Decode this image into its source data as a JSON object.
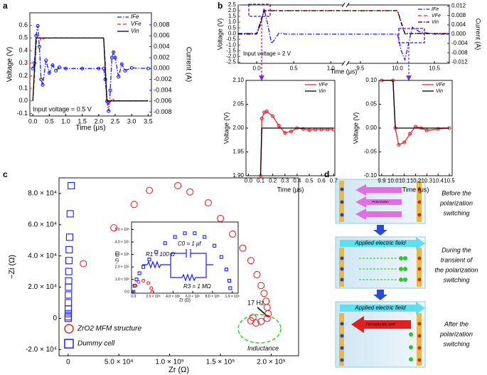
{
  "panel_labels": [
    "a",
    "b",
    "c",
    "d"
  ],
  "chart_data": [
    {
      "type": "line",
      "xlabel": "Time (μs)",
      "ylabel": "Voltage (V)",
      "y2label": "Current (A)",
      "annotations": [
        "Input voltage = 0.5 V"
      ],
      "legend": "upper right",
      "ycolor": "#e8262b",
      "y2color": "#1a1aff",
      "xlim": [
        -0.09,
        3.6
      ],
      "xticks": [
        {
          "value": 0,
          "label": "0.0"
        },
        0.5,
        {
          "value": 1,
          "label": "1.0"
        },
        1.5,
        {
          "value": 2,
          "label": "2.0"
        },
        2.5,
        {
          "value": 3,
          "label": "3.0"
        },
        3.5
      ],
      "ylim": [
        -0.12,
        0.7
      ],
      "yticks": [
        -0.1,
        {
          "value": 0,
          "label": "0.0"
        },
        0.1,
        0.2,
        0.3,
        0.4,
        0.5,
        0.6
      ],
      "y2lim": [
        -0.0087,
        0.0102
      ],
      "y2ticks": [
        -0.008,
        -0.006,
        -0.004,
        -0.002,
        {
          "value": 0,
          "label": "0.000"
        },
        0.002,
        0.004,
        0.006,
        0.008
      ],
      "x": [
        0,
        0.05,
        0.1,
        0.15,
        0.2,
        0.25,
        0.3,
        0.4,
        0.5,
        0.6,
        0.7,
        0.8,
        1.0,
        1.5,
        2.0,
        2.15,
        2.2,
        2.25,
        2.3,
        2.35,
        2.4,
        2.45,
        2.5,
        2.6,
        2.7,
        2.8,
        3.0,
        3.5
      ],
      "series": [
        {
          "name": "IFe",
          "color": "#1a1aff",
          "axis": "y2",
          "dash": "dashdot",
          "marker": "circle",
          "values": [
            0,
            0.001,
            0.006,
            0.0078,
            0.004,
            -0.002,
            -0.003,
            0.0015,
            -0.0008,
            0.0006,
            -0.0004,
            0.0002,
            0,
            0,
            0,
            0,
            -0.002,
            -0.006,
            -0.0078,
            -0.004,
            0.002,
            0.003,
            0.002,
            -0.0015,
            0.0008,
            -0.0004,
            0.0001,
            0
          ]
        },
        {
          "name": "VFe",
          "color": "#e8262b",
          "dash": "dash",
          "values": [
            0,
            0.2,
            0.45,
            0.52,
            0.51,
            0.48,
            0.49,
            0.505,
            0.498,
            0.5,
            0.5,
            0.5,
            0.5,
            0.5,
            0.5,
            0.5,
            0.3,
            0.02,
            -0.03,
            -0.01,
            0.02,
            0.01,
            -0.005,
            0.003,
            0,
            0,
            0,
            0
          ]
        },
        {
          "name": "Vin",
          "color": "#000000",
          "dash": "solid",
          "values": [
            0,
            0.25,
            0.5,
            0.5,
            0.5,
            0.5,
            0.5,
            0.5,
            0.5,
            0.5,
            0.5,
            0.5,
            0.5,
            0.5,
            0.5,
            0.5,
            0.25,
            0,
            0,
            0,
            0,
            0,
            0,
            0,
            0,
            0,
            0,
            0
          ]
        }
      ]
    },
    {
      "type": "line",
      "xlabel": "Time (μs)",
      "ylabel": "Voltage (V)",
      "y2label": "Current (A)",
      "annotations": [
        "Input voltage = 2 V"
      ],
      "legend": "upper right",
      "ycolor": "#e8262b",
      "y2color": "#1a1aff",
      "xlim": [
        -0.25,
        10.7
      ],
      "xbreak": [
        1.2,
        9.3
      ],
      "xticks": [
        {
          "value": 0,
          "label": "0.0"
        },
        0.5,
        {
          "value": 1,
          "label": "1.0"
        },
        9.5,
        {
          "value": 10,
          "label": "10.0"
        },
        10.5
      ],
      "ylim": [
        -2.6,
        2.5
      ],
      "yticks": [
        -2.5,
        {
          "value": -2,
          "label": "-2.0"
        },
        -1.5,
        {
          "value": -1,
          "label": "-1.0"
        },
        -0.5,
        {
          "value": 0,
          "label": "0.0"
        },
        0.5,
        {
          "value": 1,
          "label": "1.0"
        },
        1.5,
        {
          "value": 2,
          "label": "2.0"
        },
        2.5
      ],
      "y2lim": [
        -0.0125,
        0.0125
      ],
      "y2ticks": [
        -0.012,
        -0.008,
        -0.004,
        {
          "value": 0,
          "label": "0.000"
        },
        0.004,
        0.008,
        0.012
      ],
      "x": [
        -0.25,
        0,
        0.05,
        0.1,
        0.15,
        0.2,
        0.25,
        0.3,
        0.4,
        0.5,
        0.7,
        1.0,
        1.2,
        9.3,
        9.9,
        10.0,
        10.05,
        10.1,
        10.15,
        10.2,
        10.3,
        10.5,
        10.7
      ],
      "series": [
        {
          "name": "IFe",
          "color": "#1a1aff",
          "axis": "y2",
          "dash": "dashdot",
          "values": [
            0,
            0,
            0.004,
            0.011,
            0.004,
            -0.004,
            -0.002,
            0.0005,
            0,
            0,
            0,
            0,
            0,
            0,
            0,
            0,
            -0.007,
            -0.011,
            -0.004,
            0.003,
            0.001,
            0,
            0
          ]
        },
        {
          "name": "VFe",
          "color": "#e8262b",
          "dash": "dash",
          "values": [
            0,
            0,
            0.9,
            1.9,
            2.03,
            2.02,
            2.0,
            1.99,
            2.0,
            2.0,
            2.0,
            2.0,
            2.0,
            2.0,
            2.0,
            2.0,
            0.9,
            -0.03,
            -0.02,
            0,
            0,
            0,
            0
          ]
        },
        {
          "name": "Vin",
          "color": "#000000",
          "dash": "dashdot",
          "values": [
            0,
            0,
            1,
            2,
            2,
            2,
            2,
            2,
            2,
            2,
            2,
            2,
            2,
            2,
            2,
            2,
            1,
            0,
            0,
            0,
            0,
            0,
            0
          ]
        }
      ]
    },
    {
      "type": "line",
      "xlabel": "Time (μs)",
      "ylabel": "Voltage (V)",
      "legend": "upper right",
      "xlim": [
        -0.02,
        0.71
      ],
      "xticks": [
        {
          "value": 0,
          "label": "0.0"
        },
        0.1,
        0.2,
        0.3,
        0.4,
        0.5,
        0.6,
        0.7
      ],
      "ylim": [
        1.9,
        2.1
      ],
      "yticks": [
        {
          "value": 1.9,
          "label": "1.90"
        },
        1.95,
        {
          "value": 2,
          "label": "2.00"
        },
        2.05,
        {
          "value": 2.1,
          "label": "2.10"
        }
      ],
      "x": [
        0.1,
        0.11,
        0.13,
        0.15,
        0.2,
        0.25,
        0.3,
        0.35,
        0.4,
        0.45,
        0.5,
        0.55,
        0.6,
        0.65,
        0.7
      ],
      "series": [
        {
          "name": "VFe",
          "color": "#e8262b",
          "dash": "solid",
          "marker": "circle",
          "values": [
            1.9,
            2.02,
            2.033,
            2.035,
            2.025,
            2.005,
            1.99,
            1.993,
            2.0,
            1.998,
            1.996,
            1.997,
            1.997,
            1.997,
            1.997
          ]
        },
        {
          "name": "Vin",
          "color": "#000000",
          "dash": "solid",
          "values": [
            1.9,
            2.0,
            2.0,
            2.0,
            2.0,
            2.0,
            2.0,
            2.0,
            2.0,
            2.0,
            2.0,
            2.0,
            2.0,
            2.0,
            2.0
          ]
        }
      ]
    },
    {
      "type": "line",
      "xlabel": "Time (μs)",
      "ylabel": "Voltage (V)",
      "legend": "upper right",
      "xlim": [
        9.875,
        10.525
      ],
      "xticks": [
        9.9,
        {
          "value": 10,
          "label": "10.0"
        },
        10.1,
        10.2,
        10.3,
        10.4,
        10.5
      ],
      "ylim": [
        -0.1,
        0.1
      ],
      "yticks": [
        {
          "value": -0.1,
          "label": "-0.10"
        },
        -0.05,
        {
          "value": 0,
          "label": "0.00"
        },
        0.05,
        {
          "value": 0.1,
          "label": "0.10"
        }
      ],
      "x": [
        9.9,
        10.0,
        10.02,
        10.05,
        10.1,
        10.15,
        10.2,
        10.25,
        10.3,
        10.4,
        10.5
      ],
      "series": [
        {
          "name": "VFe",
          "color": "#e8262b",
          "dash": "solid",
          "marker": "circle",
          "values": [
            0.1,
            0.1,
            0.0,
            -0.035,
            -0.03,
            -0.012,
            0.003,
            0.0,
            -0.005,
            -0.002,
            0
          ]
        },
        {
          "name": "Vin",
          "color": "#000000",
          "dash": "solid",
          "values": [
            0.1,
            0.1,
            0,
            0,
            0,
            0,
            0,
            0,
            0,
            0,
            0
          ]
        }
      ]
    },
    {
      "type": "scatter",
      "xlabel": "Zr (Ω)",
      "ylabel": "−Zi (Ω)",
      "legend": "lower left",
      "annotations": [
        "17 Hz",
        "Inductance"
      ],
      "xlim": [
        -9000,
        227000
      ],
      "xticks": [
        0,
        {
          "value": 50000,
          "label": "5.0 × 10⁴"
        },
        {
          "value": 100000,
          "label": "1.0 × 10⁵"
        },
        {
          "value": 150000,
          "label": "1.5 × 10⁵"
        },
        {
          "value": 200000,
          "label": "2.0 × 10⁵"
        }
      ],
      "ylim": [
        -24000,
        90000
      ],
      "yticks": [
        {
          "value": -20000,
          "label": "-2.0 × 10⁴"
        },
        0,
        {
          "value": 20000,
          "label": "2.0 × 10⁴"
        },
        {
          "value": 40000,
          "label": "4.0 × 10⁴"
        },
        {
          "value": 60000,
          "label": "6.0 × 10⁴"
        },
        {
          "value": 80000,
          "label": "8.0 × 10⁴"
        }
      ],
      "series": [
        {
          "name": "ZrO2 MFM structure",
          "color": "#e8262b",
          "marker": "circle",
          "x": [
            15000,
            45000,
            65000,
            80000,
            108000,
            120000,
            138000,
            150000,
            162000,
            172000,
            180000,
            186000,
            190000,
            193000,
            195000,
            196000,
            197000,
            196000,
            190000,
            185000,
            180000,
            182000
          ],
          "values": [
            35000,
            58000,
            73000,
            82000,
            85000,
            81000,
            74000,
            64000,
            54000,
            45000,
            37000,
            28000,
            21000,
            16000,
            11000,
            7000,
            3000,
            0,
            -2000,
            -3000,
            -1500,
            500
          ]
        },
        {
          "name": "Dummy cell",
          "color": "#1a1aff",
          "marker": "square",
          "x": [
            3000,
            2000,
            1500,
            1000,
            800,
            600,
            500,
            400,
            300,
            200,
            150,
            100,
            50,
            0
          ],
          "values": [
            85000,
            67000,
            52000,
            44000,
            37000,
            30000,
            24000,
            20000,
            15000,
            10000,
            6000,
            3000,
            1000,
            0
          ]
        }
      ]
    },
    {
      "type": "scatter",
      "xlabel": "Zr (Ω)",
      "ylabel": "−Zi (Ω)",
      "circuit": [
        "R1 = 100 Ω",
        "C0 = 1 μf",
        "R3 = 1 MΩ"
      ],
      "xlim": [
        -20000,
        1060000
      ],
      "xticks": [
        {
          "value": 0,
          "label": "0.0"
        },
        {
          "value": 200000,
          "label": "2.0 × 10⁵"
        },
        {
          "value": 400000,
          "label": "4.0 × 10⁵"
        },
        {
          "value": 600000,
          "label": "6.0 × 10⁵"
        },
        {
          "value": 800000,
          "label": "8.0 × 10⁵"
        },
        {
          "value": 1000000,
          "label": "1.0 × 10⁶"
        }
      ],
      "ylim": [
        -10000,
        560000
      ],
      "yticks": [
        {
          "value": 0,
          "label": "0.0"
        },
        {
          "value": 100000,
          "label": "1.0 × 10⁵"
        },
        {
          "value": 200000,
          "label": "2.0 × 10⁵"
        },
        {
          "value": 300000,
          "label": "3.0 × 10⁵"
        },
        {
          "value": 400000,
          "label": "4.0 × 10⁵"
        },
        {
          "value": 500000,
          "label": "5.0 × 10⁵"
        }
      ],
      "series": [
        {
          "color": "#e8262b",
          "marker": "circle",
          "x": [
            20000,
            50000,
            100000,
            150000,
            180000,
            190000
          ],
          "values": [
            50000,
            80000,
            90000,
            70000,
            30000,
            0
          ]
        },
        {
          "color": "#1a1aff",
          "marker": "square",
          "x": [
            0,
            10000,
            30000,
            60000,
            100000,
            160000,
            230000,
            320000,
            420000,
            520000,
            620000,
            720000,
            820000,
            890000,
            940000,
            970000,
            980000
          ],
          "values": [
            0,
            50000,
            100000,
            150000,
            200000,
            260000,
            320000,
            390000,
            440000,
            470000,
            470000,
            440000,
            370000,
            280000,
            180000,
            90000,
            30000
          ]
        }
      ]
    }
  ],
  "diagram": {
    "steps": [
      {
        "caption": [
          "Before the",
          "polarization",
          "switching"
        ],
        "arrow_label": "Polarization"
      },
      {
        "caption": [
          "During the",
          "transient of",
          "the polarization",
          "switching"
        ],
        "field_label": "Applied electric field"
      },
      {
        "caption": [
          "After the",
          "polarization",
          "switching"
        ],
        "field_label": "Applied electric field",
        "arrow_label": "Ferroelectric emf"
      }
    ]
  }
}
